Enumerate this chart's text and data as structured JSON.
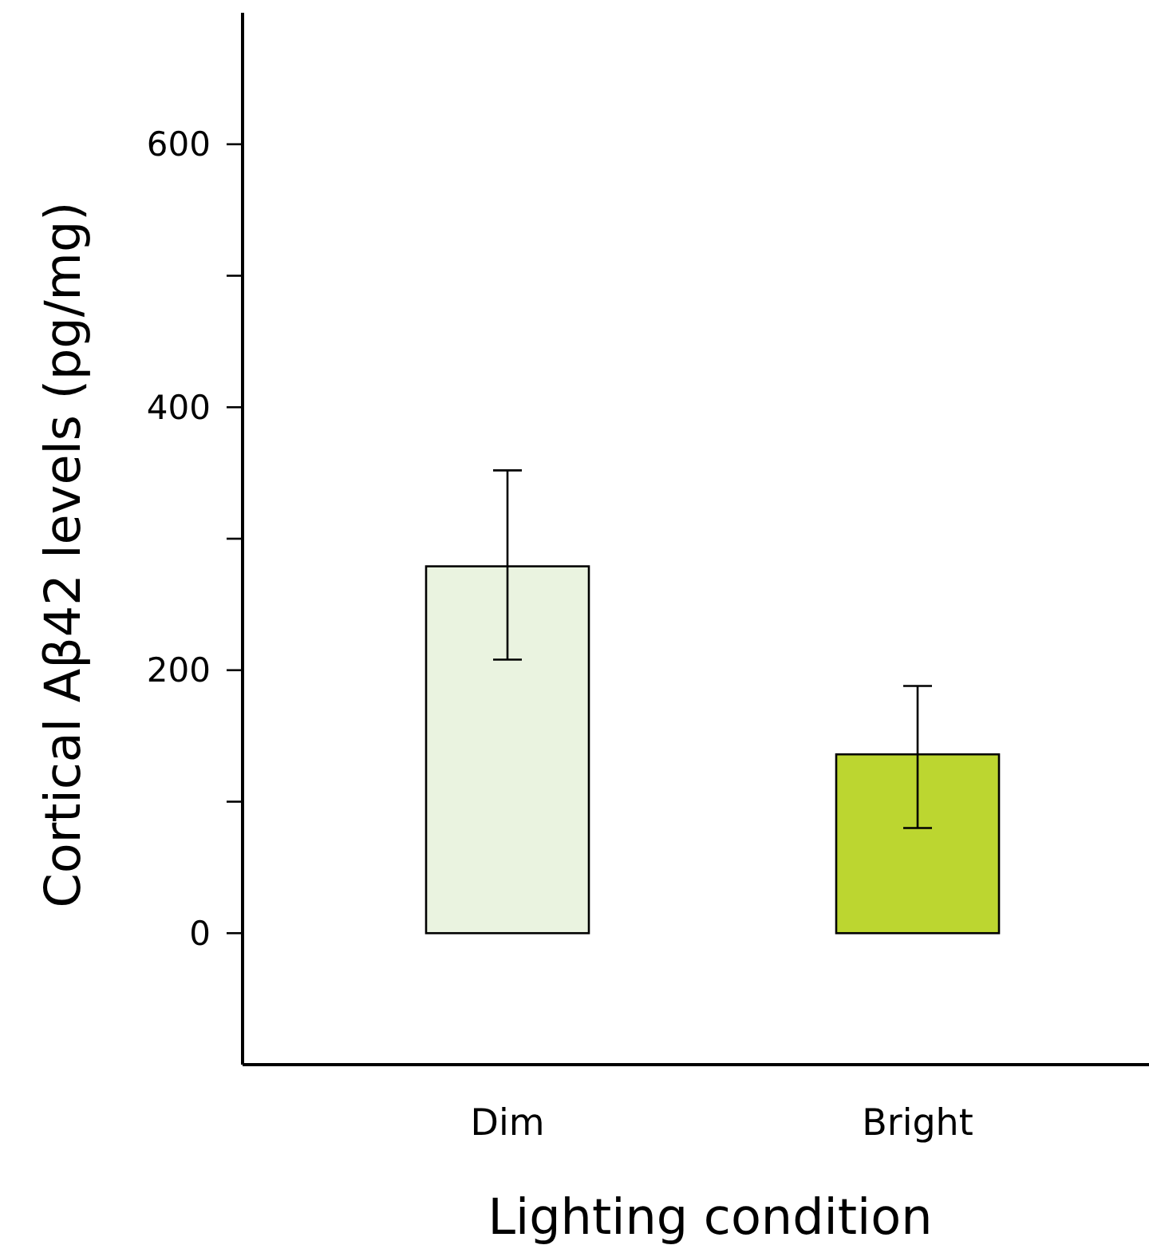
{
  "chart_data": {
    "type": "bar",
    "xlabel": "Lighting condition",
    "ylabel": "Cortical Aβ42 levels (pg/mg)",
    "categories": [
      "Dim",
      "Bright"
    ],
    "values": [
      279,
      136
    ],
    "colors": [
      "#eaf3e0",
      "#bcd630"
    ],
    "errors": [
      [
        208,
        352
      ],
      [
        80,
        188
      ]
    ],
    "ylim": [
      -100,
      700
    ],
    "yticks": [
      0,
      {
        "value": 100,
        "label": null
      },
      200,
      {
        "value": 300,
        "label": null
      },
      400,
      {
        "value": 500,
        "label": null
      },
      600
    ],
    "grid": false
  }
}
